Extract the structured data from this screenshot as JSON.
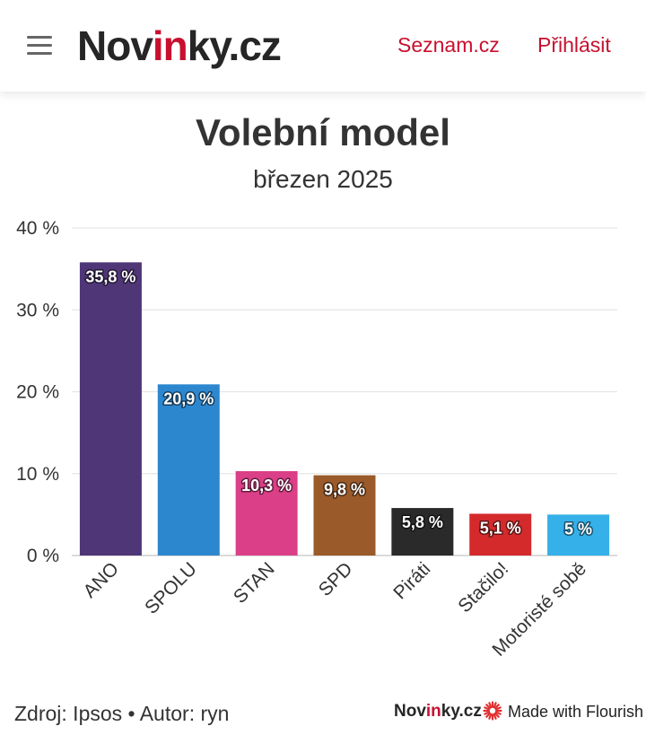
{
  "header": {
    "logo_prefix": "Nov",
    "logo_accent": "in",
    "logo_suffix": "ky.cz",
    "nav_seznam": "Seznam.cz",
    "nav_login": "Přihlásit",
    "menu_icon": "hamburger-menu-icon"
  },
  "chart_data": {
    "type": "bar",
    "title": "Volební model",
    "subtitle": "březen 2025",
    "categories": [
      "ANO",
      "SPOLU",
      "STAN",
      "SPD",
      "Piráti",
      "Stačilo!",
      "Motoristé sobě"
    ],
    "values": [
      35.8,
      20.9,
      10.3,
      9.8,
      5.8,
      5.1,
      5
    ],
    "data_labels": [
      "35,8 %",
      "20,9 %",
      "10,3 %",
      "9,8 %",
      "5,8 %",
      "5,1 %",
      "5 %"
    ],
    "colors": [
      "#4f3677",
      "#2d87cf",
      "#da3f87",
      "#9a5a2a",
      "#2a2a2a",
      "#d42a2c",
      "#35b0e8"
    ],
    "ylim": [
      0,
      40
    ],
    "yticks": [
      0,
      10,
      20,
      30,
      40
    ],
    "ytick_labels": [
      "0 %",
      "10 %",
      "20 %",
      "30 %",
      "40 %"
    ],
    "xlabel": "",
    "ylabel": "",
    "grid": true
  },
  "footer": {
    "source": "Zdroj: Ipsos • Autor: ryn",
    "brand_prefix": "Nov",
    "brand_accent": "in",
    "brand_suffix": "ky.cz",
    "flourish_label": "Made with Flourish",
    "flourish_icon": "flourish-logo-icon"
  }
}
